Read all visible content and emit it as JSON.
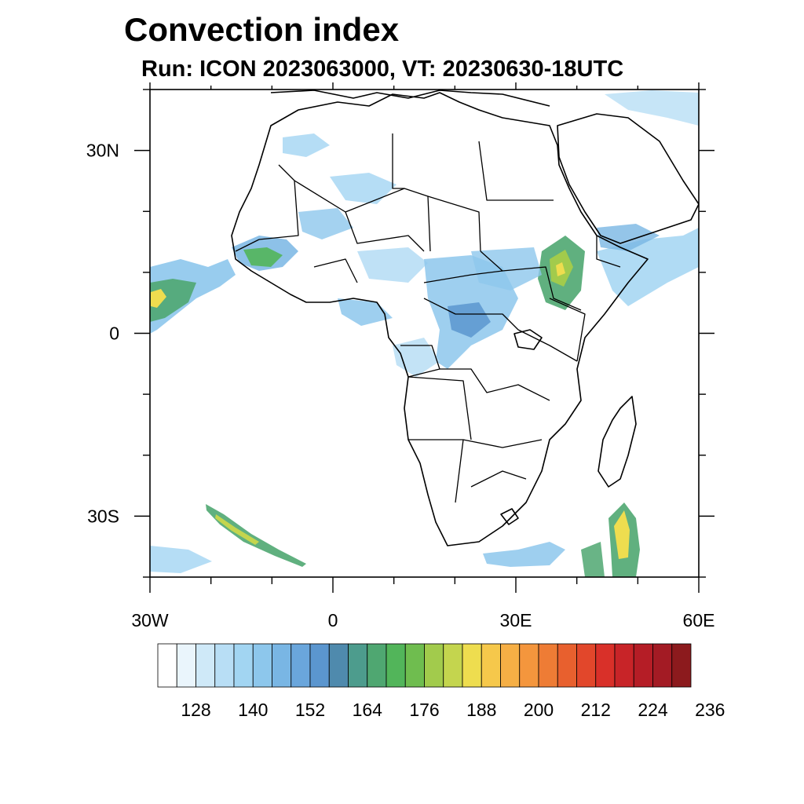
{
  "title": "Convection index",
  "subtitle": "Run: ICON 2023063000,  VT: 20230630-18UTC",
  "map": {
    "region": "Africa",
    "lon_range": [
      -30,
      60
    ],
    "lat_range": [
      -40,
      40
    ],
    "lat_ticks": [
      {
        "value": 30,
        "label": "30N"
      },
      {
        "value": 0,
        "label": "0"
      },
      {
        "value": -30,
        "label": "30S"
      }
    ],
    "lon_ticks": [
      {
        "value": -30,
        "label": "30W"
      },
      {
        "value": 0,
        "label": "0"
      },
      {
        "value": 30,
        "label": "30E"
      },
      {
        "value": 60,
        "label": "60E"
      }
    ]
  },
  "colorbar": {
    "colors": [
      "#ffffff",
      "#eaf5fc",
      "#cfe9f8",
      "#b8def5",
      "#a2d5f2",
      "#8dc7ec",
      "#79b6e4",
      "#6aa6dc",
      "#5b96cf",
      "#4f8aad",
      "#4d9c8d",
      "#4fa771",
      "#52b55a",
      "#6fbd4f",
      "#a2cb4c",
      "#c4d54e",
      "#eedd4f",
      "#f6c84b",
      "#f6af45",
      "#f4963d",
      "#ee7c35",
      "#e8602e",
      "#e2472b",
      "#d93029",
      "#c82428",
      "#b51d26",
      "#a31b24",
      "#8c1a1d"
    ],
    "labels": [
      "128",
      "140",
      "152",
      "164",
      "176",
      "188",
      "200",
      "212",
      "224",
      "236"
    ],
    "label_boxes": [
      2,
      5,
      8,
      11,
      14,
      17,
      20,
      23,
      26,
      29
    ]
  }
}
